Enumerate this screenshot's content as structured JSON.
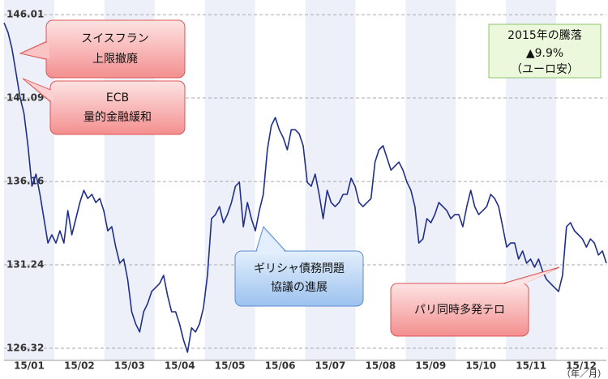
{
  "chart_data": {
    "type": "line",
    "x_axis_labels": [
      "15/01",
      "15/02",
      "15/03",
      "15/04",
      "15/05",
      "15/06",
      "15/07",
      "15/08",
      "15/09",
      "15/10",
      "15/11",
      "15/12"
    ],
    "x_unit": "（年／月）",
    "ylim": [
      125.6,
      146.4
    ],
    "yticks": [
      146.01,
      141.09,
      136.16,
      131.24,
      126.32
    ],
    "grid": true,
    "color": "#1f2f8a",
    "values": [
      145.53,
      144.96,
      144.0,
      142.57,
      141.14,
      140.18,
      138.27,
      135.88,
      136.6,
      135.4,
      133.97,
      132.53,
      133.01,
      132.53,
      133.25,
      132.53,
      134.44,
      133.01,
      133.97,
      134.92,
      135.64,
      135.16,
      135.4,
      134.92,
      135.16,
      134.44,
      133.25,
      133.49,
      132.29,
      131.34,
      131.58,
      130.38,
      128.47,
      127.75,
      127.28,
      128.47,
      128.95,
      129.67,
      129.9,
      130.14,
      130.62,
      129.43,
      128.47,
      128.47,
      127.75,
      126.8,
      126.08,
      127.52,
      127.28,
      127.75,
      128.71,
      130.62,
      133.97,
      134.21,
      134.68,
      133.73,
      134.21,
      134.92,
      135.88,
      136.12,
      133.49,
      134.92,
      133.97,
      133.25,
      134.44,
      135.4,
      138.03,
      139.46,
      139.94,
      139.22,
      138.75,
      138.03,
      139.22,
      139.22,
      138.98,
      138.27,
      136.12,
      135.88,
      136.6,
      135.4,
      133.97,
      135.64,
      134.92,
      134.68,
      134.92,
      135.4,
      135.4,
      136.36,
      135.88,
      134.92,
      134.68,
      134.92,
      135.16,
      137.31,
      138.03,
      138.27,
      137.55,
      136.83,
      137.07,
      137.31,
      136.83,
      136.12,
      135.64,
      134.68,
      132.53,
      132.77,
      133.97,
      133.73,
      134.21,
      134.92,
      134.68,
      134.44,
      133.97,
      134.21,
      134.21,
      133.49,
      134.68,
      135.64,
      134.68,
      134.21,
      134.44,
      134.68,
      135.4,
      135.16,
      134.68,
      133.49,
      132.29,
      132.53,
      132.53,
      131.58,
      132.06,
      131.34,
      131.58,
      131.1,
      131.58,
      130.86,
      130.38,
      130.14,
      129.9,
      129.67,
      130.62,
      133.49,
      133.73,
      133.25,
      133.01,
      132.77,
      132.29,
      132.77,
      132.53,
      131.82,
      132.06,
      131.34
    ],
    "annotations": [
      {
        "lines": [
          "スイスフラン",
          "上限撤廃"
        ]
      },
      {
        "lines": [
          "ECB",
          "量的金融緩和"
        ]
      },
      {
        "lines": [
          "ギリシャ債務問題",
          "協議の進展"
        ]
      },
      {
        "lines": [
          "パリ同時多発テロ"
        ]
      }
    ],
    "info_box": {
      "lines": [
        "2015年の騰落",
        "▲9.9%",
        "（ユーロ安）"
      ]
    }
  }
}
